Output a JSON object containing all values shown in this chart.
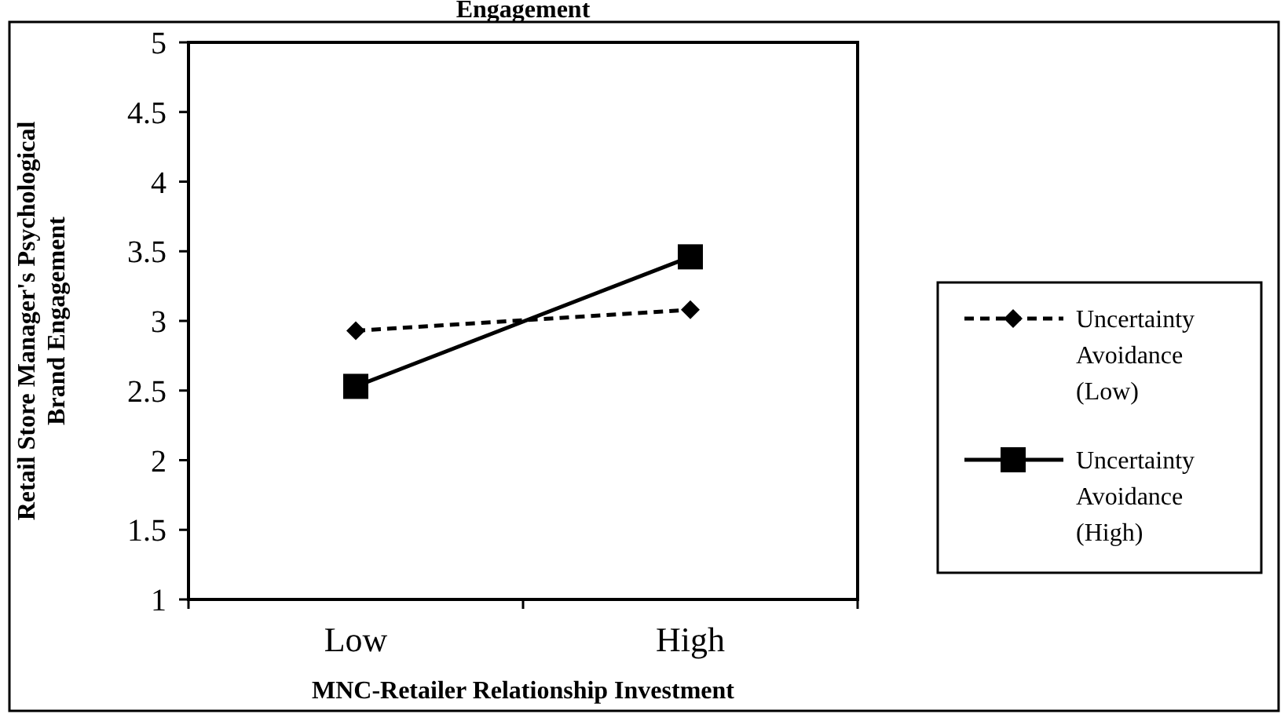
{
  "chart_data": {
    "type": "line",
    "title": "Engagement",
    "xlabel": "MNC-Retailer Relationship Investment",
    "ylabel": "Retail Store Manager's Psychological\nBrand Engagement",
    "categories": [
      "Low",
      "High"
    ],
    "series": [
      {
        "name": "Uncertainty Avoidance (Low)",
        "color": "#000000",
        "values": [
          2.93,
          3.08
        ],
        "marker": "diamond",
        "line_style": "dashed"
      },
      {
        "name": "Uncertainty Avoidance (High)",
        "color": "#000000",
        "values": [
          2.53,
          3.46
        ],
        "marker": "square",
        "line_style": "solid"
      }
    ],
    "ylim": [
      1,
      5
    ],
    "yticks": [
      1,
      1.5,
      2,
      2.5,
      3,
      3.5,
      4,
      4.5,
      5
    ],
    "legend": "right",
    "grid": false
  }
}
